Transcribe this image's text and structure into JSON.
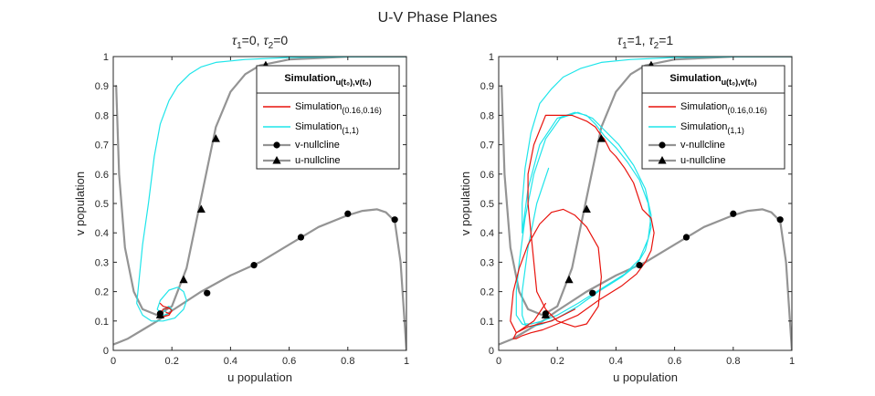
{
  "figure_title": "U-V Phase Planes",
  "colors": {
    "nullcline": "#949494",
    "sim_small": "#e8120c",
    "sim_large": "#1fe5ea",
    "marker": "#000000",
    "axis": "#262626"
  },
  "chart_data": [
    {
      "type": "line",
      "title": "τ₁=0,  τ₂=0",
      "title_parts": {
        "tau1": "τ",
        "sub1": "1",
        "val1": "=0,  ",
        "tau2": "τ",
        "sub2": "2",
        "val2": "=0"
      },
      "xlabel": "u population",
      "ylabel": "v population",
      "xlim": [
        0,
        1
      ],
      "ylim": [
        0,
        1
      ],
      "xticks": [
        "0",
        "0.2",
        "0.4",
        "0.6",
        "0.8",
        "1"
      ],
      "yticks": [
        "0",
        "0.1",
        "0.2",
        "0.3",
        "0.4",
        "0.5",
        "0.6",
        "0.7",
        "0.8",
        "0.9",
        "1"
      ],
      "grid": false,
      "legend_position": "top-right",
      "legend": {
        "title_main": "Simulation",
        "title_sub": "u(t₀),v(t₀)",
        "entries": [
          {
            "main": "Simulation",
            "sub": "(0.16,0.16)",
            "series": "sim_small"
          },
          {
            "main": "Simulation",
            "sub": "(1,1)",
            "series": "sim_large"
          },
          {
            "main": "v-nullcline",
            "sub": "",
            "series": "v_nullcline"
          },
          {
            "main": "u-nullcline",
            "sub": "",
            "series": "u_nullcline"
          }
        ]
      },
      "series": [
        {
          "id": "v_nullcline",
          "name": "v-nullcline",
          "marker": "circle",
          "x": [
            0.0,
            0.05,
            0.1,
            0.15,
            0.2,
            0.3,
            0.4,
            0.5,
            0.6,
            0.7,
            0.8,
            0.85,
            0.9,
            0.93,
            0.96,
            0.98,
            0.99,
            1.0
          ],
          "y": [
            0.02,
            0.04,
            0.07,
            0.1,
            0.135,
            0.2,
            0.255,
            0.3,
            0.36,
            0.42,
            0.46,
            0.475,
            0.48,
            0.47,
            0.44,
            0.3,
            0.15,
            0.0
          ],
          "markers_x": [
            0.16,
            0.32,
            0.48,
            0.64,
            0.8,
            0.96
          ],
          "markers_y": [
            0.125,
            0.195,
            0.29,
            0.385,
            0.465,
            0.445
          ]
        },
        {
          "id": "u_nullcline",
          "name": "u-nullcline",
          "marker": "triangle",
          "x": [
            0.01,
            0.02,
            0.04,
            0.07,
            0.1,
            0.15,
            0.2,
            0.25,
            0.3,
            0.35,
            0.4,
            0.45,
            0.5,
            0.6,
            0.7,
            0.8,
            0.9,
            1.0
          ],
          "y": [
            0.9,
            0.6,
            0.35,
            0.2,
            0.14,
            0.12,
            0.15,
            0.28,
            0.52,
            0.76,
            0.88,
            0.94,
            0.97,
            0.99,
            0.995,
            1.0,
            1.0,
            1.0
          ],
          "markers_x": [
            0.16,
            0.24,
            0.3,
            0.35,
            0.52
          ],
          "markers_y": [
            0.12,
            0.24,
            0.48,
            0.72,
            0.97
          ]
        },
        {
          "id": "sim_small",
          "name": "Simulation(0.16,0.16)",
          "x": [
            0.16,
            0.17,
            0.19,
            0.2,
            0.19,
            0.17,
            0.16,
            0.17,
            0.19,
            0.2,
            0.19,
            0.18
          ],
          "y": [
            0.16,
            0.15,
            0.145,
            0.135,
            0.12,
            0.115,
            0.125,
            0.14,
            0.145,
            0.135,
            0.125,
            0.13
          ]
        },
        {
          "id": "sim_large",
          "name": "Simulation(1,1)",
          "x": [
            1.0,
            0.8,
            0.6,
            0.45,
            0.35,
            0.3,
            0.26,
            0.22,
            0.19,
            0.16,
            0.14,
            0.12,
            0.1,
            0.09,
            0.08,
            0.1,
            0.13,
            0.17,
            0.21,
            0.24,
            0.25,
            0.24,
            0.22,
            0.19,
            0.16,
            0.15,
            0.17,
            0.19,
            0.2,
            0.19,
            0.17,
            0.18
          ],
          "y": [
            1.0,
            0.999,
            0.997,
            0.99,
            0.98,
            0.965,
            0.94,
            0.9,
            0.85,
            0.77,
            0.66,
            0.5,
            0.36,
            0.26,
            0.16,
            0.12,
            0.1,
            0.1,
            0.11,
            0.14,
            0.17,
            0.2,
            0.215,
            0.205,
            0.17,
            0.14,
            0.12,
            0.125,
            0.14,
            0.15,
            0.14,
            0.13
          ]
        }
      ]
    },
    {
      "type": "line",
      "title": "τ₁=1,  τ₂=1",
      "title_parts": {
        "tau1": "τ",
        "sub1": "1",
        "val1": "=1,  ",
        "tau2": "τ",
        "sub2": "2",
        "val2": "=1"
      },
      "xlabel": "u population",
      "ylabel": "v population",
      "xlim": [
        0,
        1
      ],
      "ylim": [
        0,
        1
      ],
      "xticks": [
        "0",
        "0.2",
        "0.4",
        "0.6",
        "0.8",
        "1"
      ],
      "yticks": [
        "0",
        "0.1",
        "0.2",
        "0.3",
        "0.4",
        "0.5",
        "0.6",
        "0.7",
        "0.8",
        "0.9",
        "1"
      ],
      "grid": false,
      "legend_position": "top-right",
      "legend": {
        "title_main": "Simulation",
        "title_sub": "u(t₀),v(t₀)",
        "entries": [
          {
            "main": "Simulation",
            "sub": "(0.16,0.16)",
            "series": "sim_small"
          },
          {
            "main": "Simulation",
            "sub": "(1,1)",
            "series": "sim_large"
          },
          {
            "main": "v-nullcline",
            "sub": "",
            "series": "v_nullcline"
          },
          {
            "main": "u-nullcline",
            "sub": "",
            "series": "u_nullcline"
          }
        ]
      },
      "series": [
        {
          "id": "v_nullcline",
          "name": "v-nullcline",
          "marker": "circle",
          "x": [
            0.0,
            0.05,
            0.1,
            0.15,
            0.2,
            0.3,
            0.4,
            0.5,
            0.6,
            0.7,
            0.8,
            0.85,
            0.9,
            0.93,
            0.96,
            0.98,
            0.99,
            1.0
          ],
          "y": [
            0.02,
            0.04,
            0.07,
            0.1,
            0.135,
            0.2,
            0.255,
            0.3,
            0.36,
            0.42,
            0.46,
            0.475,
            0.48,
            0.47,
            0.44,
            0.3,
            0.15,
            0.0
          ],
          "markers_x": [
            0.16,
            0.32,
            0.48,
            0.64,
            0.8,
            0.96
          ],
          "markers_y": [
            0.125,
            0.195,
            0.29,
            0.385,
            0.465,
            0.445
          ]
        },
        {
          "id": "u_nullcline",
          "name": "u-nullcline",
          "marker": "triangle",
          "x": [
            0.01,
            0.02,
            0.04,
            0.07,
            0.1,
            0.15,
            0.2,
            0.25,
            0.3,
            0.35,
            0.4,
            0.45,
            0.5,
            0.6,
            0.7,
            0.8,
            0.9,
            1.0
          ],
          "y": [
            0.9,
            0.6,
            0.35,
            0.2,
            0.14,
            0.12,
            0.15,
            0.28,
            0.52,
            0.76,
            0.88,
            0.94,
            0.97,
            0.99,
            0.995,
            1.0,
            1.0,
            1.0
          ],
          "markers_x": [
            0.16,
            0.24,
            0.3,
            0.35,
            0.52
          ],
          "markers_y": [
            0.12,
            0.24,
            0.48,
            0.72,
            0.97
          ]
        },
        {
          "id": "sim_small",
          "name": "Simulation(0.16,0.16)",
          "x": [
            0.16,
            0.12,
            0.06,
            0.04,
            0.05,
            0.07,
            0.1,
            0.14,
            0.18,
            0.22,
            0.26,
            0.3,
            0.34,
            0.35,
            0.34,
            0.3,
            0.26,
            0.2,
            0.16,
            0.13,
            0.12,
            0.11,
            0.1,
            0.1,
            0.12,
            0.16,
            0.25,
            0.3,
            0.33,
            0.35,
            0.36,
            0.37,
            0.38,
            0.4,
            0.43,
            0.46,
            0.49,
            0.52,
            0.53,
            0.52,
            0.5,
            0.47,
            0.42,
            0.34,
            0.27,
            0.2,
            0.15,
            0.11,
            0.08,
            0.06,
            0.05,
            0.06,
            0.08,
            0.1,
            0.14,
            0.18,
            0.22,
            0.26
          ],
          "y": [
            0.16,
            0.1,
            0.06,
            0.1,
            0.2,
            0.28,
            0.36,
            0.43,
            0.47,
            0.48,
            0.46,
            0.42,
            0.35,
            0.25,
            0.15,
            0.09,
            0.08,
            0.1,
            0.14,
            0.2,
            0.3,
            0.4,
            0.5,
            0.6,
            0.7,
            0.8,
            0.8,
            0.78,
            0.76,
            0.73,
            0.72,
            0.7,
            0.68,
            0.66,
            0.62,
            0.57,
            0.48,
            0.45,
            0.4,
            0.34,
            0.3,
            0.26,
            0.22,
            0.17,
            0.12,
            0.09,
            0.07,
            0.06,
            0.05,
            0.04,
            0.04,
            0.06,
            0.07,
            0.08,
            0.09,
            0.1,
            0.12,
            0.14
          ]
        },
        {
          "id": "sim_large",
          "name": "Simulation(1,1)",
          "x": [
            1.0,
            0.8,
            0.6,
            0.45,
            0.35,
            0.28,
            0.22,
            0.18,
            0.14,
            0.11,
            0.09,
            0.08,
            0.08,
            0.1,
            0.14,
            0.2,
            0.26,
            0.3,
            0.33,
            0.36,
            0.4,
            0.44,
            0.48,
            0.51,
            0.52,
            0.5,
            0.47,
            0.42,
            0.34,
            0.27,
            0.2,
            0.15,
            0.11,
            0.08,
            0.06,
            0.06,
            0.07,
            0.09,
            0.12,
            0.16,
            0.21,
            0.27,
            0.32,
            0.36,
            0.41,
            0.46,
            0.5,
            0.52,
            0.51,
            0.48,
            0.43,
            0.35,
            0.27,
            0.2,
            0.15,
            0.11,
            0.09,
            0.08,
            0.08,
            0.1,
            0.13,
            0.17
          ],
          "y": [
            1.0,
            0.999,
            0.997,
            0.99,
            0.98,
            0.96,
            0.93,
            0.89,
            0.84,
            0.74,
            0.62,
            0.5,
            0.4,
            0.55,
            0.7,
            0.79,
            0.81,
            0.8,
            0.77,
            0.73,
            0.69,
            0.64,
            0.58,
            0.5,
            0.42,
            0.34,
            0.29,
            0.25,
            0.2,
            0.15,
            0.11,
            0.09,
            0.08,
            0.09,
            0.12,
            0.2,
            0.3,
            0.45,
            0.6,
            0.72,
            0.79,
            0.81,
            0.79,
            0.75,
            0.7,
            0.63,
            0.55,
            0.46,
            0.38,
            0.31,
            0.26,
            0.21,
            0.16,
            0.12,
            0.1,
            0.09,
            0.09,
            0.12,
            0.2,
            0.35,
            0.5,
            0.62
          ]
        }
      ]
    }
  ]
}
